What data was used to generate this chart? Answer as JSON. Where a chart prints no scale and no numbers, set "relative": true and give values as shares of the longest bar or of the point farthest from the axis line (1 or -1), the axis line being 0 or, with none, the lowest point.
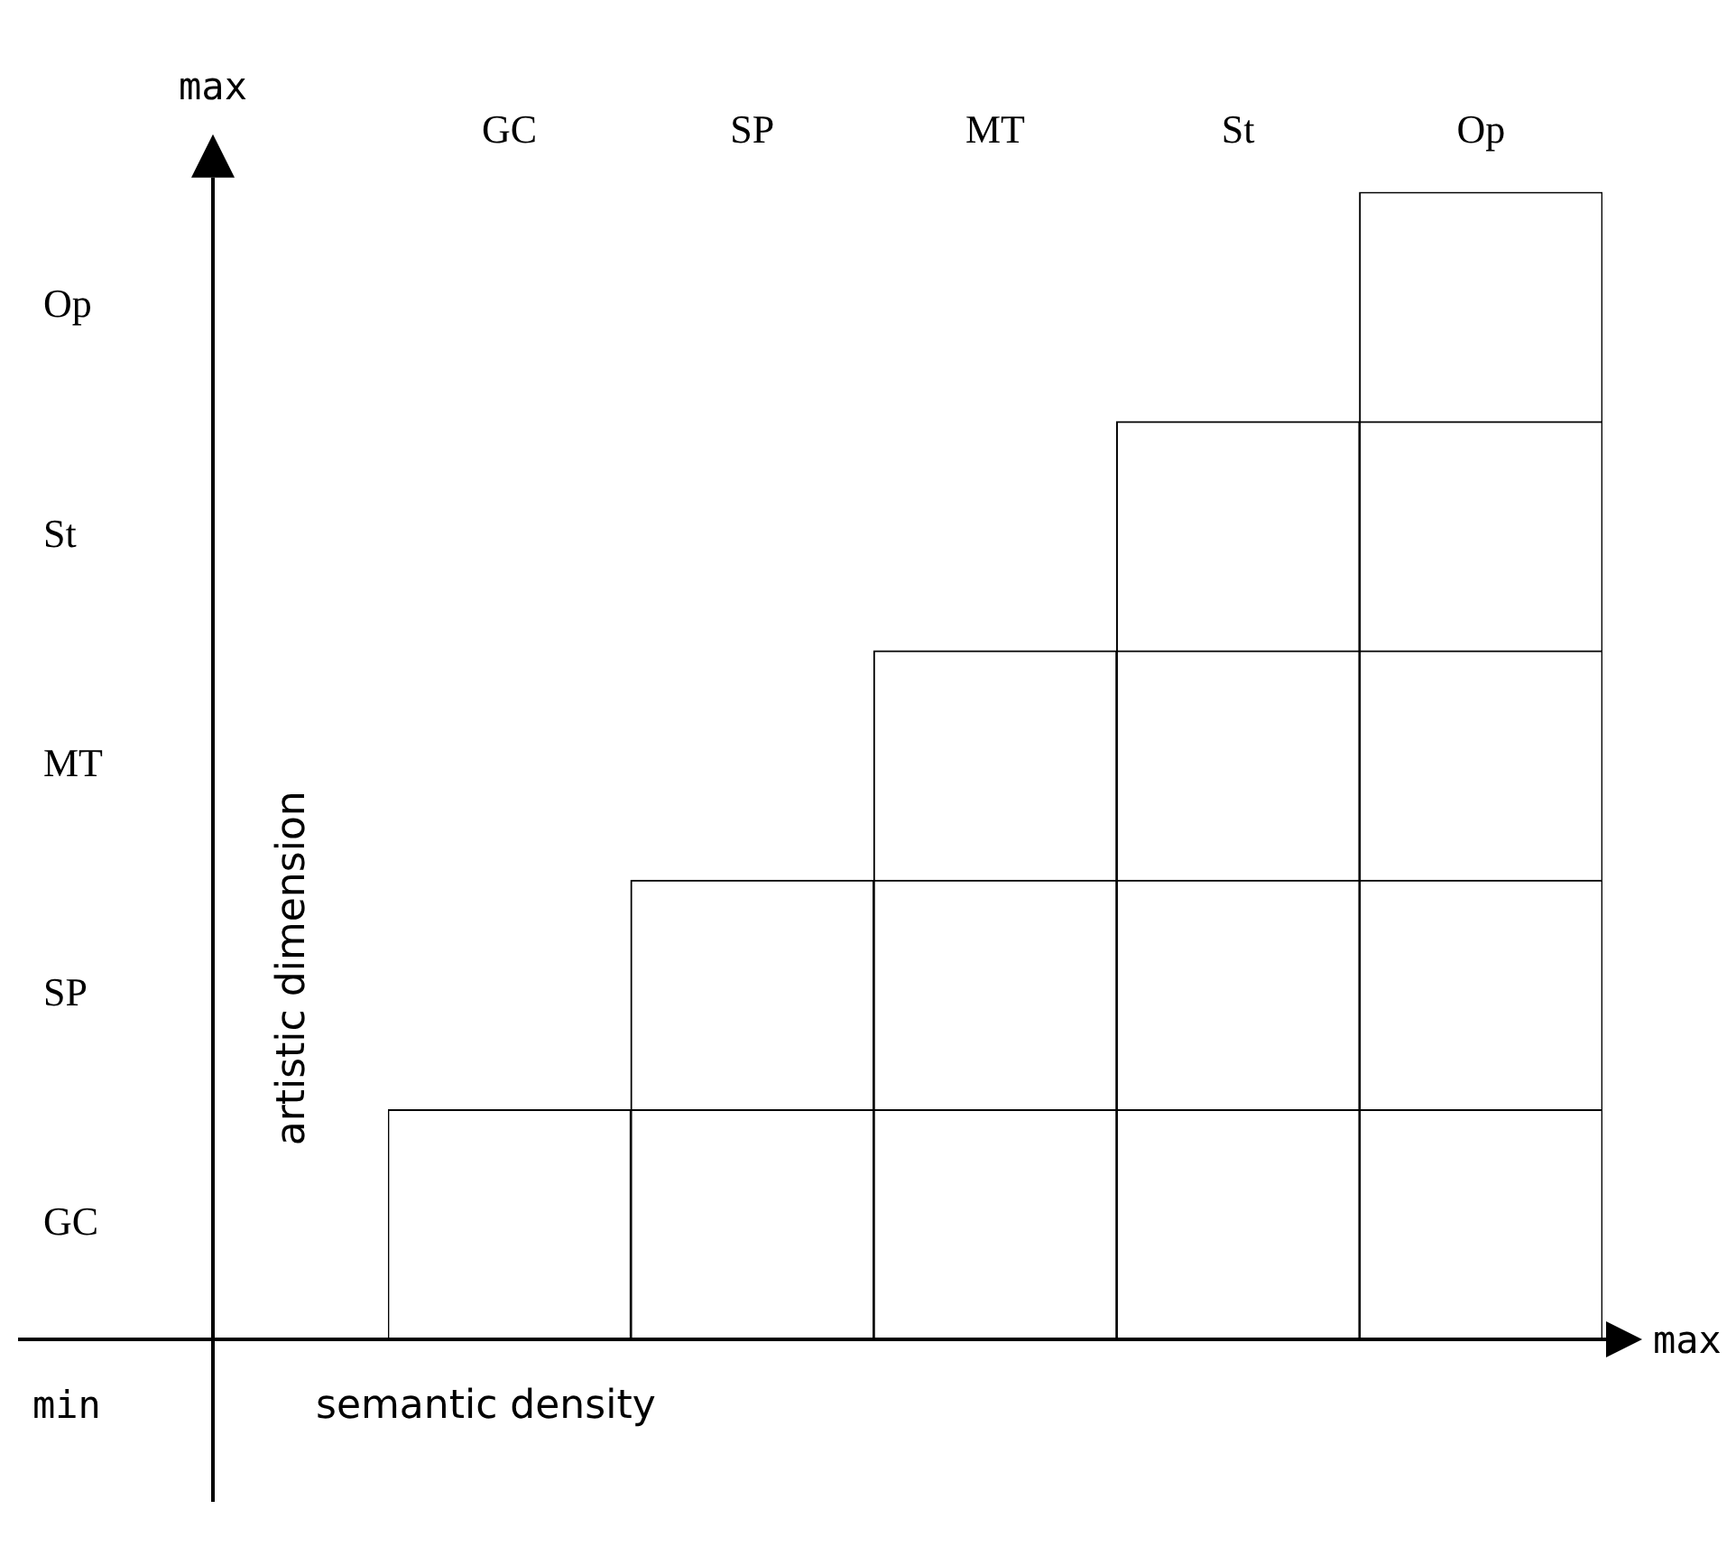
{
  "chart_data": {
    "type": "bar",
    "stacked": true,
    "relative": true,
    "legend": false,
    "grid": false,
    "categories": [
      "GC",
      "SP",
      "MT",
      "St",
      "Op"
    ],
    "series": [
      {
        "color": "#ffffff",
        "values": [
          0.2,
          0.2,
          0.2,
          0.2,
          0.2
        ]
      },
      {
        "color": "#ffffff",
        "values": [
          null,
          0.2,
          0.2,
          0.2,
          0.2
        ]
      },
      {
        "color": "#ffffff",
        "values": [
          null,
          null,
          0.2,
          0.2,
          0.2
        ]
      },
      {
        "color": "#ffffff",
        "values": [
          null,
          null,
          null,
          0.2,
          0.2
        ]
      },
      {
        "color": "#ffffff",
        "values": [
          null,
          null,
          null,
          null,
          0.2
        ]
      }
    ],
    "xlabel": "semantic density",
    "ylabel": "artistic dimension",
    "annotations": [
      "GC",
      "SP",
      "MT",
      "St",
      "Op",
      "max",
      "max",
      "min"
    ]
  }
}
